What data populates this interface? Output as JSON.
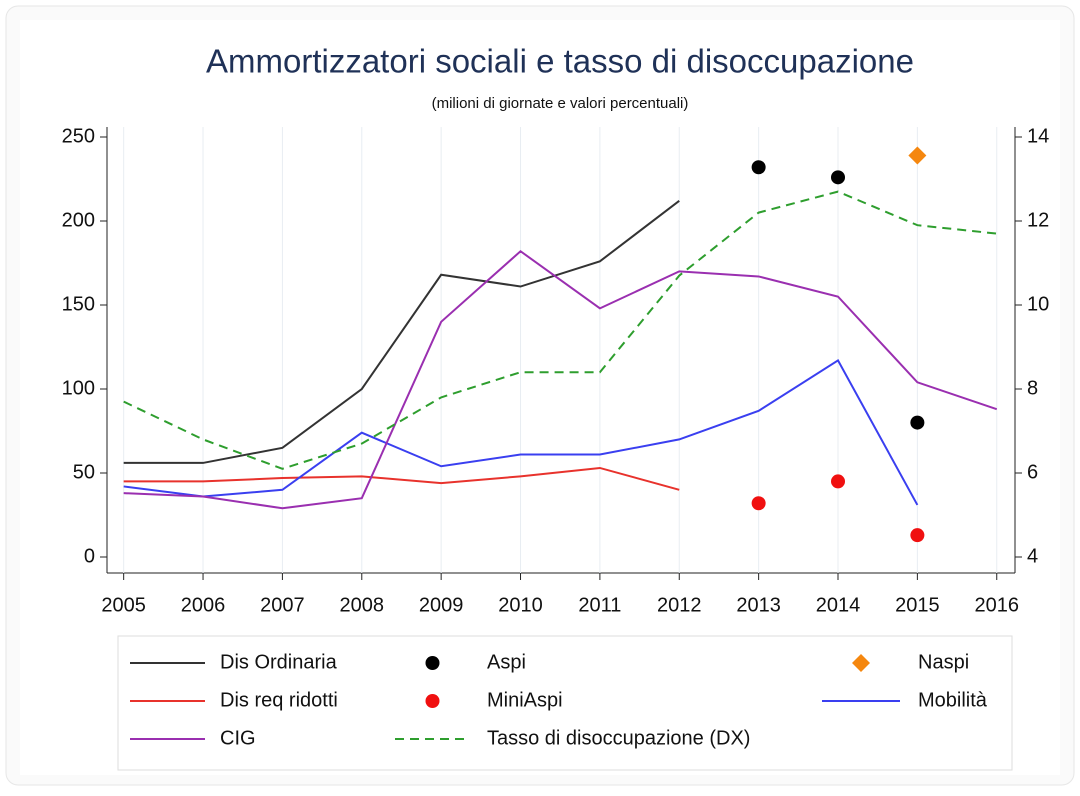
{
  "chart_data": {
    "type": "line",
    "title": "Ammortizzatori sociali e tasso di disoccupazione",
    "subtitle": "(milioni di giornate e valori percentuali)",
    "x": [
      2005,
      2006,
      2007,
      2008,
      2009,
      2010,
      2011,
      2012,
      2013,
      2014,
      2015,
      2016
    ],
    "xlim": [
      2004.79,
      2016.23
    ],
    "xticks": [
      2005,
      2006,
      2007,
      2008,
      2009,
      2010,
      2011,
      2012,
      2013,
      2014,
      2015,
      2016
    ],
    "ylim": [
      0,
      250
    ],
    "yticks": [
      0,
      50,
      100,
      150,
      200,
      250
    ],
    "y2lim": [
      4,
      14
    ],
    "y2ticks": [
      4,
      6,
      8,
      10,
      12,
      14
    ],
    "grid": "x",
    "series": [
      {
        "name": "Dis Ordinaria",
        "color": "#333333",
        "values": [
          56,
          56,
          65,
          100,
          168,
          161,
          176,
          212,
          null,
          null,
          null,
          null
        ]
      },
      {
        "name": "Aspi",
        "color": "#000000",
        "marker": "circle",
        "values": [
          null,
          null,
          null,
          null,
          null,
          null,
          null,
          null,
          232,
          226,
          80,
          null
        ]
      },
      {
        "name": "Naspi",
        "color": "#f5870f",
        "marker": "diamond",
        "values": [
          null,
          null,
          null,
          null,
          null,
          null,
          null,
          null,
          null,
          null,
          239,
          null
        ]
      },
      {
        "name": "Dis req ridotti",
        "color": "#e8322c",
        "values": [
          45,
          45,
          47,
          48,
          44,
          48,
          53,
          40,
          null,
          null,
          null,
          null
        ]
      },
      {
        "name": "MiniAspi",
        "color": "#f01010",
        "marker": "circle",
        "values": [
          null,
          null,
          null,
          null,
          null,
          null,
          null,
          null,
          32,
          45,
          13,
          null
        ]
      },
      {
        "name": "Mobilità",
        "color": "#3a3ff0",
        "values": [
          42,
          36,
          40,
          74,
          54,
          61,
          61,
          70,
          87,
          117,
          31,
          null
        ]
      },
      {
        "name": "CIG",
        "color": "#9a2fb0",
        "values": [
          38,
          36,
          29,
          35,
          140,
          182,
          148,
          170,
          167,
          155,
          104,
          88
        ]
      },
      {
        "name": "Tasso di disoccupazione (DX)",
        "color": "#2e9e2e",
        "line_style": "dashed",
        "axis": "y2",
        "values": [
          7.7,
          6.8,
          6.1,
          6.7,
          7.8,
          8.4,
          8.4,
          10.7,
          12.2,
          12.7,
          11.9,
          11.7
        ]
      }
    ]
  }
}
